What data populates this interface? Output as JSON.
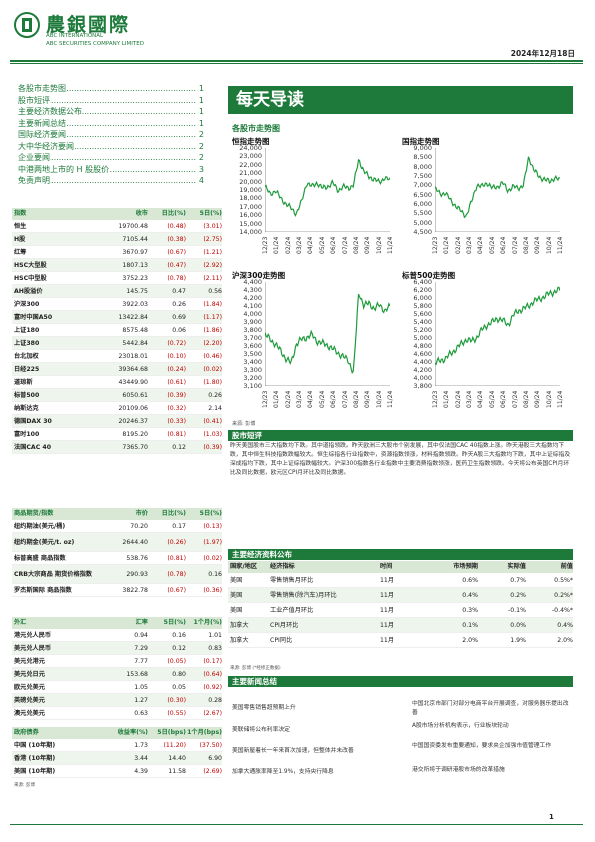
{
  "header": {
    "logo_name": "農銀國際",
    "company_en_1": "ABC INTERNATIONAL",
    "company_en_2": "ABC SECURITIES COMPANY LIMITED",
    "date": "2024年12月18日"
  },
  "toc": [
    {
      "label": "各股市走势图",
      "page": "1"
    },
    {
      "label": "股市短评",
      "page": "1"
    },
    {
      "label": "主要经济数据公布",
      "page": "1"
    },
    {
      "label": "主要新闻总结",
      "page": "1"
    },
    {
      "label": "国际经济要闻",
      "page": "2"
    },
    {
      "label": "大中华经济要闻",
      "page": "2"
    },
    {
      "label": "企业要闻",
      "page": "2"
    },
    {
      "label": "中港两地上市的 H 股股价",
      "page": "3"
    },
    {
      "label": "免责声明",
      "page": "4"
    }
  ],
  "title": "每天导读",
  "sections": {
    "charts": "各股市走势图",
    "commentary": "股市短评",
    "eco": "主要经济资料公布",
    "news": "主要新闻总结"
  },
  "index_table": {
    "headers": [
      "指数",
      "收市",
      "日比(%)",
      "5日(%)"
    ],
    "rows": [
      [
        "恒生",
        "19700.48",
        "(0.48)",
        "(3.01)"
      ],
      [
        "H股",
        "7105.44",
        "(0.38)",
        "(2.75)"
      ],
      [
        "红筹",
        "3670.97",
        "(0.67)",
        "(1.21)"
      ],
      [
        "HSC大型股",
        "1807.13",
        "(0.47)",
        "(2.92)"
      ],
      [
        "HSC中型股",
        "3752.23",
        "(0.78)",
        "(2.11)"
      ],
      [
        "AH股溢价",
        "145.75",
        "0.47",
        "0.56"
      ],
      [
        "沪深300",
        "3922.03",
        "0.26",
        "(1.84)"
      ],
      [
        "富时中国A50",
        "13422.84",
        "0.69",
        "(1.17)"
      ],
      [
        "上证180",
        "8575.48",
        "0.06",
        "(1.86)"
      ],
      [
        "上证380",
        "5442.84",
        "(0.72)",
        "(2.20)"
      ],
      [
        "台北加权",
        "23018.01",
        "(0.10)",
        "(0.46)"
      ],
      [
        "日经225",
        "39364.68",
        "(0.24)",
        "(0.02)"
      ],
      [
        "道琼斯",
        "43449.90",
        "(0.61)",
        "(1.80)"
      ],
      [
        "标普500",
        "6050.61",
        "(0.39)",
        "0.26"
      ],
      [
        "纳斯达克",
        "20109.06",
        "(0.32)",
        "2.14"
      ],
      [
        "德国DAX 30",
        "20246.37",
        "(0.33)",
        "(0.41)"
      ],
      [
        "富时100",
        "8195.20",
        "(0.81)",
        "(1.03)"
      ],
      [
        "法国CAC 40",
        "7365.70",
        "0.12",
        "(0.39)"
      ]
    ]
  },
  "commodity_table": {
    "headers": [
      "商品期货/指数",
      "市价",
      "日比(%)",
      "5日(%)"
    ],
    "rows": [
      [
        "纽约期油(美元/桶)",
        "70.20",
        "0.17",
        "(0.13)"
      ],
      [
        "纽约期金(美元/t. oz)",
        "2644.40",
        "(0.26)",
        "(1.97)"
      ],
      [
        "标普高盛 商品指数",
        "538.76",
        "(0.81)",
        "(0.02)"
      ],
      [
        "CRB大宗商品 期货价格指数",
        "290.93",
        "(0.78)",
        "0.16"
      ],
      [
        "罗杰斯国际 商品指数",
        "3822.78",
        "(0.67)",
        "(0.36)"
      ]
    ]
  },
  "fx_table": {
    "headers": [
      "外汇",
      "汇率",
      "5日(%)",
      "1个月(%)"
    ],
    "rows": [
      [
        "港元兑人民币",
        "0.94",
        "0.16",
        "1.01"
      ],
      [
        "美元兑人民币",
        "7.29",
        "0.12",
        "0.83"
      ],
      [
        "美元兑港元",
        "7.77",
        "(0.05)",
        "(0.17)"
      ],
      [
        "美元兑日元",
        "153.68",
        "0.80",
        "(0.64)"
      ],
      [
        "欧元兑美元",
        "1.05",
        "0.05",
        "(0.92)"
      ],
      [
        "英磅兑美元",
        "1.27",
        "(0.30)",
        "0.28"
      ],
      [
        "澳元兑美元",
        "0.63",
        "(0.55)",
        "(2.67)"
      ]
    ]
  },
  "bond_table": {
    "headers": [
      "政府债券",
      "收益率(%)",
      "5日(bps)",
      "1个月(bps)"
    ],
    "rows": [
      [
        "中国 (10年期)",
        "1.73",
        "(11.20)",
        "(37.50)"
      ],
      [
        "香港 (10年期)",
        "3.44",
        "14.40",
        "6.90"
      ],
      [
        "美国 (10年期)",
        "4.39",
        "11.58",
        "(2.69)"
      ]
    ]
  },
  "table_source": "来源: 彭博",
  "charts": [
    {
      "title": "恒指走势图",
      "yticks": [
        "24,000",
        "23,000",
        "22,000",
        "21,000",
        "20,000",
        "19,000",
        "18,000",
        "17,000",
        "16,000",
        "15,000",
        "14,000"
      ]
    },
    {
      "title": "国指走势图",
      "yticks": [
        "9,000",
        "8,500",
        "8,000",
        "7,500",
        "7,000",
        "6,500",
        "6,000",
        "5,500",
        "5,000",
        "4,500"
      ]
    },
    {
      "title": "沪深300走势图",
      "yticks": [
        "4,400",
        "4,300",
        "4,200",
        "4,100",
        "4,000",
        "3,900",
        "3,800",
        "3,700",
        "3,600",
        "3,500",
        "3,400",
        "3,300",
        "3,200",
        "3,100"
      ]
    },
    {
      "title": "标普500走势图",
      "yticks": [
        "6,400",
        "6,200",
        "6,000",
        "5,800",
        "5,600",
        "5,400",
        "5,200",
        "5,000",
        "4,800",
        "4,600",
        "4,400",
        "4,200",
        "4,000",
        "3,800"
      ]
    }
  ],
  "xticks": [
    "12/23",
    "01/24",
    "02/24",
    "03/24",
    "04/24",
    "05/24",
    "06/24",
    "07/24",
    "08/24",
    "09/24",
    "10/24",
    "11/24"
  ],
  "chart_source": "来源: 彭博",
  "commentary": "昨天美国股市三大指数均下跌。其中道指领跌。昨天欧洲三大股市个别发展，其中仅法国CAC 40指数上涨。昨天港股三大指数均下跌，其中恒生科技指数跌幅较大。恒生综指各行业指数中，资源指数领涨，材料指数领跌。昨天A股三大指数均下跌，其中上证综指及深成指均下跌，其中上证综指跌幅较大。沪深300指数各行业指数中主要消费指数领涨，医药卫生指数领跌。今天将公布英国CPI月环比及同比数据，欧元区CPI月环比及同比数据。",
  "eco_table": {
    "headers": [
      "国家/地区",
      "经济指标",
      "时间",
      "市场预期",
      "实际值",
      "前值"
    ],
    "rows": [
      [
        "美国",
        "零售销售月环比",
        "11月",
        "0.6%",
        "0.7%",
        "0.5%*"
      ],
      [
        "美国",
        "零售销售(除汽车)月环比",
        "11月",
        "0.4%",
        "0.2%",
        "0.2%*"
      ],
      [
        "美国",
        "工业产值月环比",
        "11月",
        "0.3%",
        "-0.1%",
        "-0.4%*"
      ],
      [
        "加拿大",
        "CPI月环比",
        "11月",
        "0.1%",
        "0.0%",
        "0.4%"
      ],
      [
        "加拿大",
        "CPI同比",
        "11月",
        "2.0%",
        "1.9%",
        "2.0%"
      ]
    ]
  },
  "eco_source": "来源: 彭博 (*经修正数据)",
  "news_left": [
    "美国零售销售超预期上升",
    "美联储将公布利率决定",
    "美国新屋着长一年来首次加速，但整体并未改善",
    "加拿大通胀率降至1.9%，支持央行降息"
  ],
  "news_right": [
    "中国北京市部门对部分电商平台开展调查，对服务器乐提出改善",
    "A股市场分析机构表示，行业板块轮动",
    "中国国资委发布重要通知，要求央企加强市值管理工作",
    "港交所将于调研港股市场的改革措施"
  ],
  "page_number": "1"
}
